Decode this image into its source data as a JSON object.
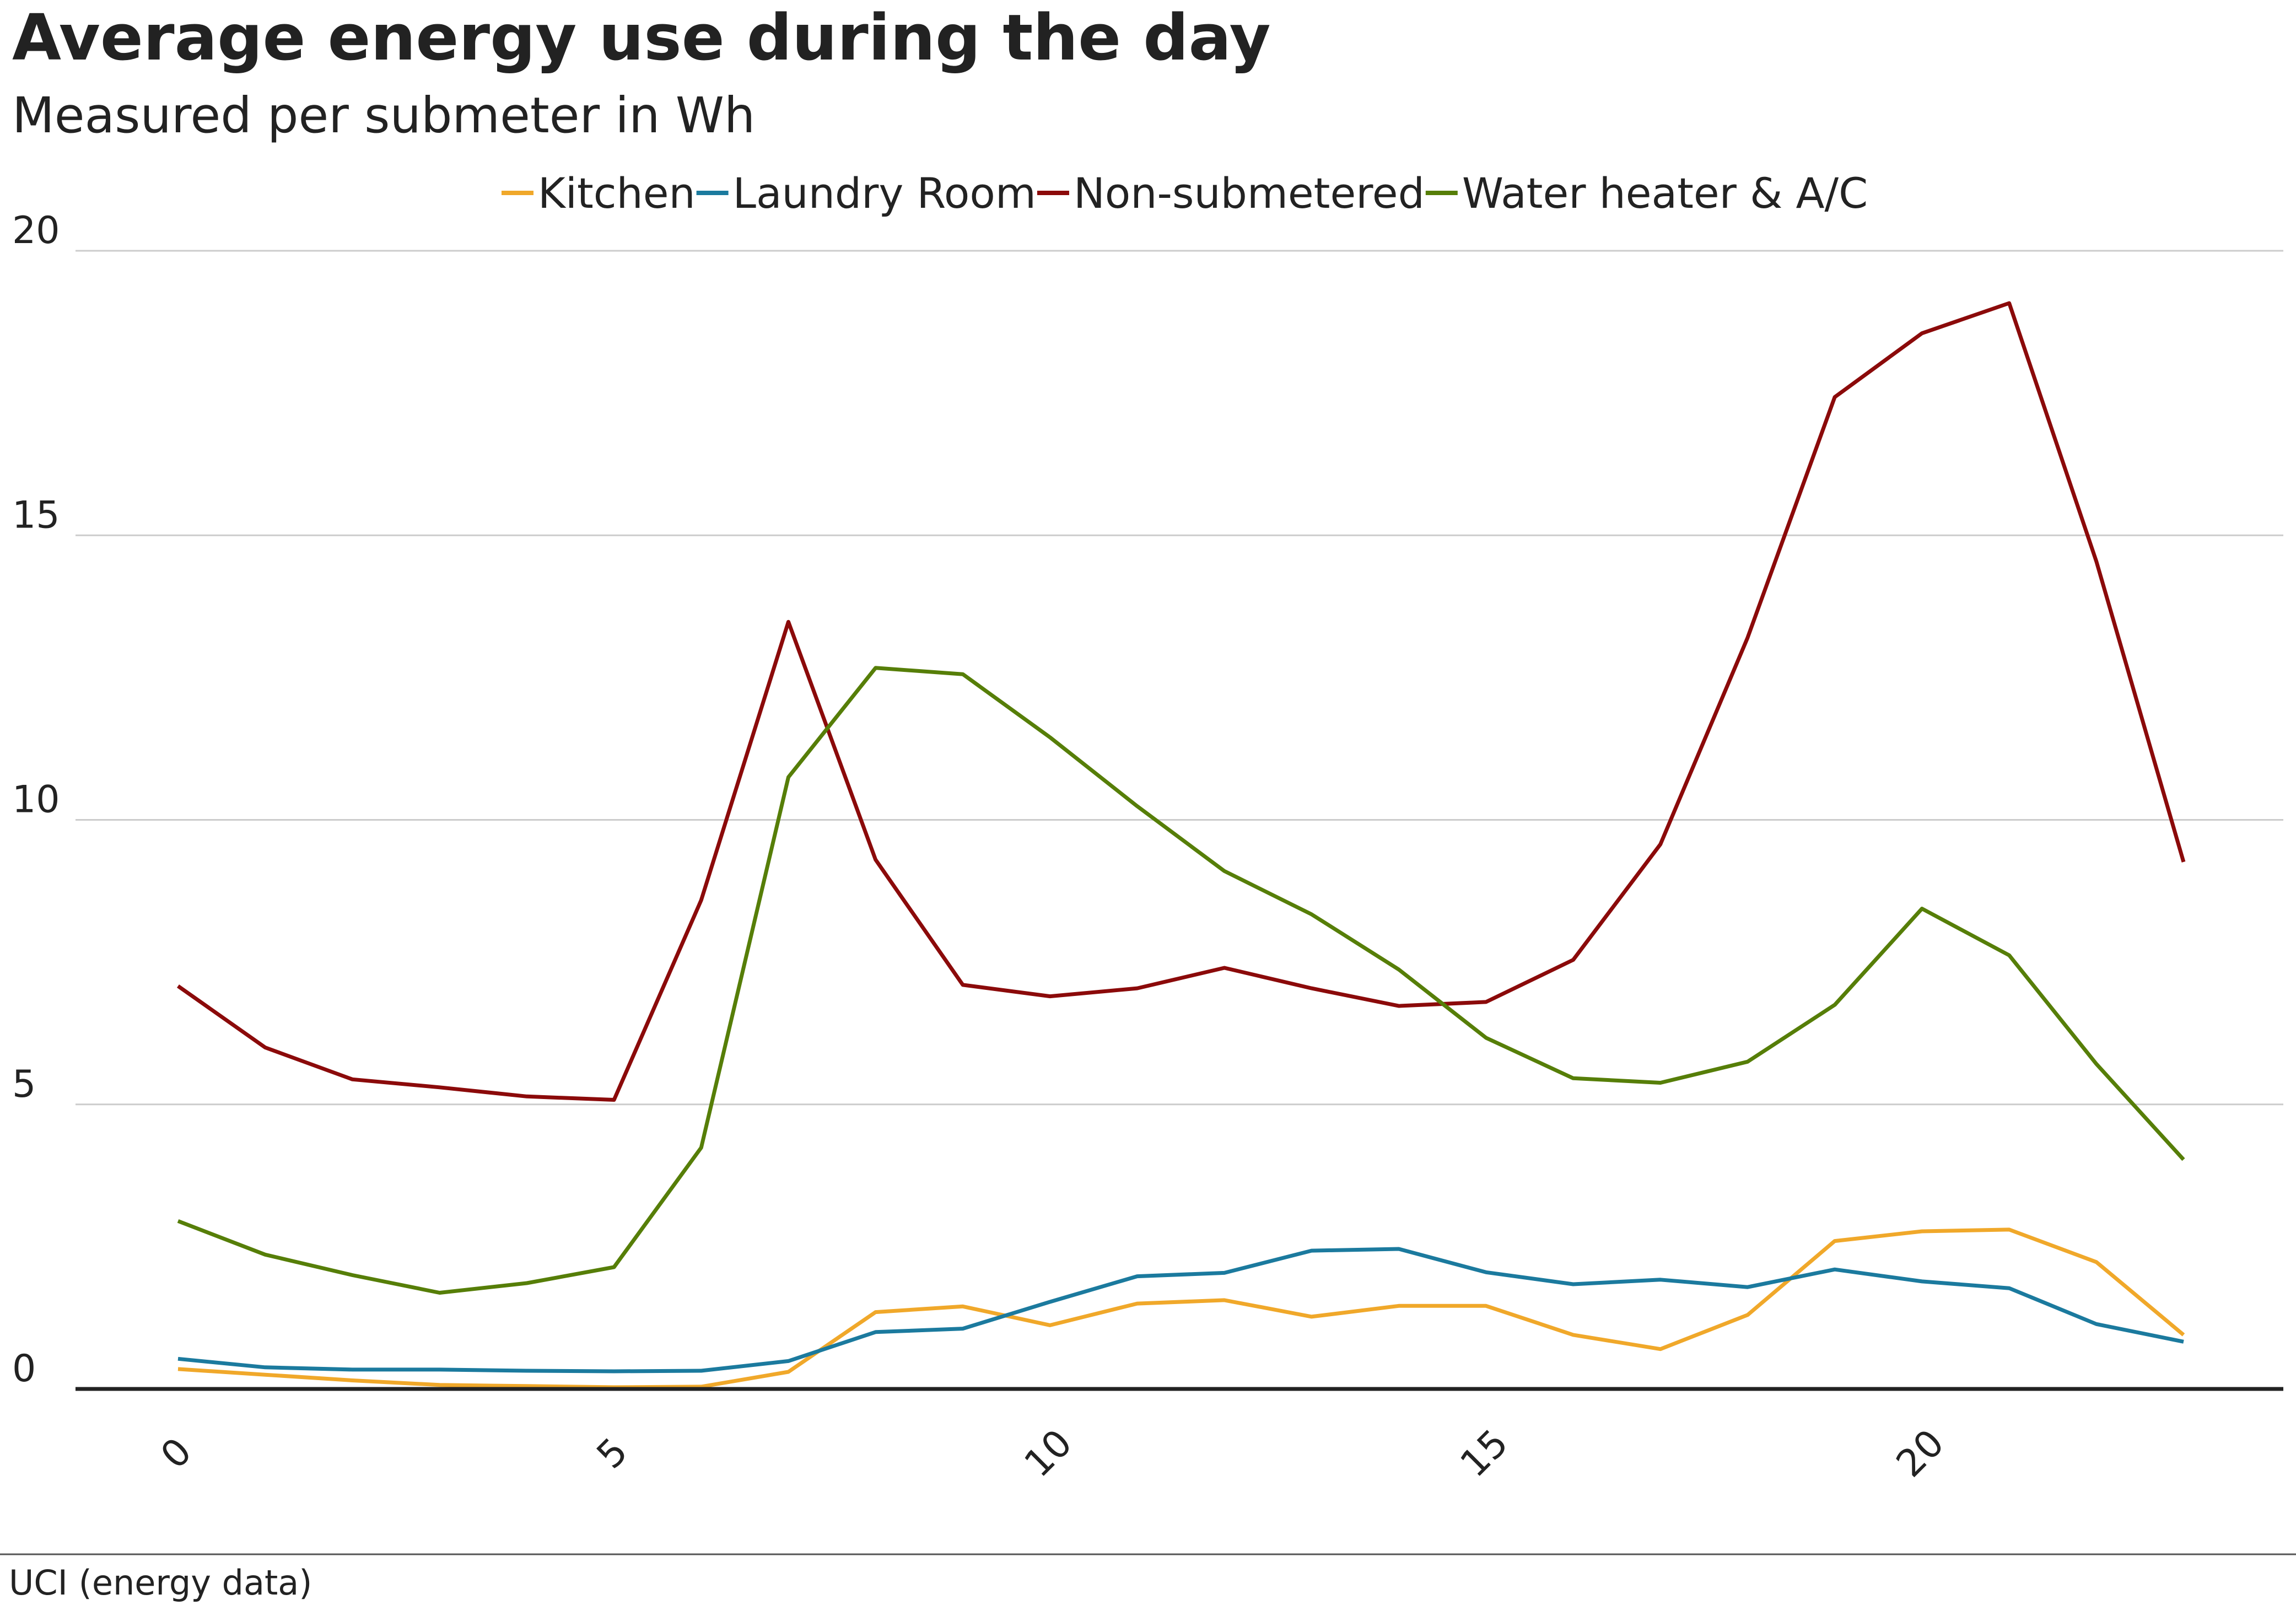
{
  "chart_data": {
    "type": "line",
    "title": "Average energy use during the day",
    "subtitle": "Measured per submeter in Wh",
    "source": "UCI (energy data)",
    "xlabel": "",
    "ylabel": "",
    "x": [
      0,
      1,
      2,
      3,
      4,
      5,
      6,
      7,
      8,
      9,
      10,
      11,
      12,
      13,
      14,
      15,
      16,
      17,
      18,
      19,
      20,
      21,
      22,
      23
    ],
    "xlim": [
      0,
      23
    ],
    "ylim": [
      0,
      20
    ],
    "x_ticks": [
      0,
      5,
      10,
      15,
      20
    ],
    "y_ticks": [
      0,
      5,
      10,
      15,
      20
    ],
    "grid": "horizontal",
    "legend_position": "top",
    "series": [
      {
        "name": "Kitchen",
        "color": "#f0a82a",
        "values": [
          0.35,
          0.25,
          0.15,
          0.07,
          0.05,
          0.03,
          0.04,
          0.3,
          1.35,
          1.45,
          1.12,
          1.5,
          1.56,
          1.27,
          1.46,
          1.46,
          0.95,
          0.7,
          1.3,
          2.6,
          2.77,
          2.8,
          2.23,
          0.95
        ]
      },
      {
        "name": "Laundry Room",
        "color": "#1b7a9e",
        "values": [
          0.53,
          0.38,
          0.34,
          0.34,
          0.32,
          0.31,
          0.32,
          0.49,
          1.0,
          1.06,
          1.53,
          1.98,
          2.04,
          2.43,
          2.46,
          2.05,
          1.84,
          1.92,
          1.79,
          2.1,
          1.89,
          1.77,
          1.14,
          0.83
        ]
      },
      {
        "name": "Non-submetered",
        "color": "#8b0a0a",
        "values": [
          7.08,
          6.0,
          5.44,
          5.3,
          5.14,
          5.08,
          8.59,
          13.48,
          9.3,
          7.1,
          6.9,
          7.04,
          7.4,
          7.04,
          6.73,
          6.8,
          7.54,
          9.57,
          13.2,
          17.43,
          18.55,
          19.08,
          14.54,
          9.26
        ]
      },
      {
        "name": "Water heater & A/C",
        "color": "#567e08",
        "values": [
          2.95,
          2.36,
          2.0,
          1.69,
          1.86,
          2.14,
          4.24,
          10.75,
          12.67,
          12.56,
          11.45,
          10.24,
          9.1,
          8.34,
          7.37,
          6.17,
          5.46,
          5.38,
          5.75,
          6.75,
          8.44,
          7.62,
          5.71,
          4.03
        ]
      }
    ]
  }
}
